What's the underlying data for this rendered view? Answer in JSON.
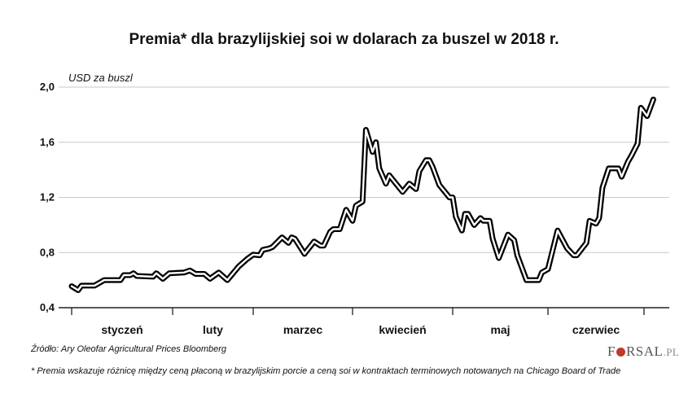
{
  "chart_data": {
    "type": "line",
    "title": "Premia* dla brazylijskiej soi w dolarach za buszel w 2018 r.",
    "ylabel": "USD za buszl",
    "xlabel": "",
    "ylim": [
      0.4,
      2.0
    ],
    "yticks": [
      "2,0",
      "1,6",
      "1,2",
      "0,8",
      "0,4"
    ],
    "ytick_values": [
      2.0,
      1.6,
      1.2,
      0.8,
      0.4
    ],
    "xtick_labels": [
      "styczeń",
      "luty",
      "marzec",
      "kwiecień",
      "maj",
      "czerwiec"
    ],
    "grid": true,
    "line_color": "#000000",
    "series": [
      {
        "points": [
          [
            "2018-01-01",
            0.556
          ],
          [
            "2018-01-03",
            0.527
          ],
          [
            "2018-01-04",
            0.56
          ],
          [
            "2018-01-08",
            0.56
          ],
          [
            "2018-01-11",
            0.6
          ],
          [
            "2018-01-16",
            0.6
          ],
          [
            "2018-01-17",
            0.636
          ],
          [
            "2018-01-19",
            0.636
          ],
          [
            "2018-01-20",
            0.65
          ],
          [
            "2018-01-21",
            0.63
          ],
          [
            "2018-01-26",
            0.625
          ],
          [
            "2018-01-27",
            0.65
          ],
          [
            "2018-01-29",
            0.61
          ],
          [
            "2018-01-31",
            0.65
          ],
          [
            "2018-02-05",
            0.655
          ],
          [
            "2018-02-07",
            0.67
          ],
          [
            "2018-02-09",
            0.645
          ],
          [
            "2018-02-12",
            0.645
          ],
          [
            "2018-02-14",
            0.61
          ],
          [
            "2018-02-17",
            0.655
          ],
          [
            "2018-02-20",
            0.6
          ],
          [
            "2018-02-24",
            0.7
          ],
          [
            "2018-02-27",
            0.755
          ],
          [
            "2018-03-01",
            0.785
          ],
          [
            "2018-03-03",
            0.78
          ],
          [
            "2018-03-04",
            0.82
          ],
          [
            "2018-03-06",
            0.83
          ],
          [
            "2018-03-07",
            0.84
          ],
          [
            "2018-03-10",
            0.91
          ],
          [
            "2018-03-12",
            0.87
          ],
          [
            "2018-03-13",
            0.91
          ],
          [
            "2018-03-14",
            0.9
          ],
          [
            "2018-03-17",
            0.79
          ],
          [
            "2018-03-20",
            0.88
          ],
          [
            "2018-03-22",
            0.85
          ],
          [
            "2018-03-23",
            0.85
          ],
          [
            "2018-03-25",
            0.95
          ],
          [
            "2018-03-26",
            0.97
          ],
          [
            "2018-03-28",
            0.97
          ],
          [
            "2018-03-30",
            1.11
          ],
          [
            "2018-04-01",
            1.03
          ],
          [
            "2018-04-02",
            1.14
          ],
          [
            "2018-04-04",
            1.17
          ],
          [
            "2018-04-05",
            1.69
          ],
          [
            "2018-04-07",
            1.53
          ],
          [
            "2018-04-08",
            1.6
          ],
          [
            "2018-04-09",
            1.41
          ],
          [
            "2018-04-11",
            1.3
          ],
          [
            "2018-04-12",
            1.36
          ],
          [
            "2018-04-16",
            1.24
          ],
          [
            "2018-04-18",
            1.3
          ],
          [
            "2018-04-20",
            1.26
          ],
          [
            "2018-04-21",
            1.39
          ],
          [
            "2018-04-23",
            1.47
          ],
          [
            "2018-04-24",
            1.47
          ],
          [
            "2018-04-25",
            1.42
          ],
          [
            "2018-04-27",
            1.29
          ],
          [
            "2018-04-29",
            1.23
          ],
          [
            "2018-04-30",
            1.2
          ],
          [
            "2018-05-01",
            1.2
          ],
          [
            "2018-05-02",
            1.06
          ],
          [
            "2018-05-04",
            0.96
          ],
          [
            "2018-05-05",
            1.08
          ],
          [
            "2018-05-06",
            1.08
          ],
          [
            "2018-05-08",
            1.0
          ],
          [
            "2018-05-10",
            1.05
          ],
          [
            "2018-05-11",
            1.03
          ],
          [
            "2018-05-13",
            1.03
          ],
          [
            "2018-05-14",
            0.9
          ],
          [
            "2018-05-16",
            0.76
          ],
          [
            "2018-05-19",
            0.93
          ],
          [
            "2018-05-21",
            0.89
          ],
          [
            "2018-05-22",
            0.78
          ],
          [
            "2018-05-25",
            0.6
          ],
          [
            "2018-05-29",
            0.6
          ],
          [
            "2018-05-30",
            0.655
          ],
          [
            "2018-06-01",
            0.68
          ],
          [
            "2018-06-04",
            0.96
          ],
          [
            "2018-06-07",
            0.83
          ],
          [
            "2018-06-09",
            0.78
          ],
          [
            "2018-06-10",
            0.78
          ],
          [
            "2018-06-13",
            0.87
          ],
          [
            "2018-06-14",
            1.03
          ],
          [
            "2018-06-16",
            1.01
          ],
          [
            "2018-06-17",
            1.05
          ],
          [
            "2018-06-18",
            1.27
          ],
          [
            "2018-06-20",
            1.41
          ],
          [
            "2018-06-23",
            1.41
          ],
          [
            "2018-06-24",
            1.35
          ],
          [
            "2018-06-26",
            1.46
          ],
          [
            "2018-06-27",
            1.5
          ],
          [
            "2018-06-29",
            1.59
          ],
          [
            "2018-06-30",
            1.85
          ],
          [
            "2018-07-02",
            1.79
          ],
          [
            "2018-07-04",
            1.91
          ]
        ]
      }
    ]
  },
  "source": "Źródło: Ary Oleofar Agricultural Prices Bloomberg",
  "footnote": "* Premia wskazuje różnicę między ceną płaconą w brazylijskim porcie a ceną soi w kontraktach terminowych notowanych na Chicago Board of Trade",
  "logo": {
    "text": "FORSAL.PL",
    "accent": "#c0392b"
  }
}
